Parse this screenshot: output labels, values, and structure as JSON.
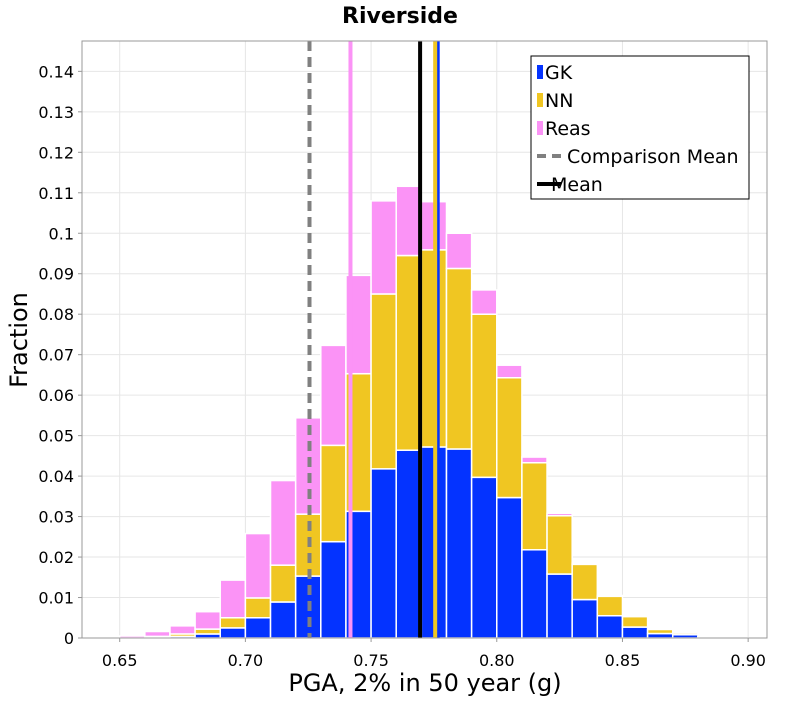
{
  "chart_data": {
    "type": "bar",
    "stacked": true,
    "title": "Riverside",
    "xlabel": "PGA, 2% in 50 year (g)",
    "ylabel": "Fraction",
    "xlim": [
      0.635,
      0.9075
    ],
    "ylim": [
      0,
      0.1475
    ],
    "grid": true,
    "legend_placement": "top-right",
    "x_ticks": [
      0.65,
      0.7,
      0.75,
      0.8,
      0.85,
      0.9
    ],
    "x_tick_labels": [
      "0.65",
      "0.70",
      "0.75",
      "0.80",
      "0.85",
      "0.90"
    ],
    "y_ticks": [
      0,
      0.01,
      0.02,
      0.03,
      0.04,
      0.05,
      0.06,
      0.07,
      0.08,
      0.09,
      0.1,
      0.11,
      0.12,
      0.13,
      0.14
    ],
    "y_tick_labels": [
      "0",
      "0.01",
      "0.02",
      "0.03",
      "0.04",
      "0.05",
      "0.06",
      "0.07",
      "0.08",
      "0.09",
      "0.1",
      "0.11",
      "0.12",
      "0.13",
      "0.14"
    ],
    "bin_width": 0.01,
    "x": [
      0.645,
      0.655,
      0.665,
      0.675,
      0.685,
      0.695,
      0.705,
      0.715,
      0.725,
      0.735,
      0.745,
      0.755,
      0.765,
      0.775,
      0.785,
      0.795,
      0.805,
      0.815,
      0.825,
      0.835,
      0.845,
      0.855,
      0.865,
      0.875,
      0.885,
      0.895
    ],
    "series": [
      {
        "name": "GK",
        "color": "#0433ff",
        "values": [
          0,
          0,
          0.0002,
          0.0004,
          0.001,
          0.0025,
          0.005,
          0.0089,
          0.0153,
          0.0238,
          0.0313,
          0.0418,
          0.0464,
          0.0472,
          0.0467,
          0.0397,
          0.0347,
          0.0218,
          0.0158,
          0.0095,
          0.0055,
          0.0027,
          0.0011,
          0.0008,
          0.0002,
          0.0001
        ]
      },
      {
        "name": "NN",
        "color": "#f0c622",
        "values": [
          0,
          0,
          0.0002,
          0.0006,
          0.0012,
          0.0025,
          0.0049,
          0.0091,
          0.0153,
          0.0238,
          0.034,
          0.0432,
          0.0481,
          0.0487,
          0.0446,
          0.0403,
          0.0296,
          0.0215,
          0.0144,
          0.0087,
          0.0048,
          0.0026,
          0.001,
          0.0004,
          0.0001,
          0
        ]
      },
      {
        "name": "Reas",
        "color": "#fb93f6",
        "values": [
          0.0002,
          0.0005,
          0.0012,
          0.002,
          0.0043,
          0.0093,
          0.0159,
          0.0209,
          0.0238,
          0.0247,
          0.0243,
          0.023,
          0.0171,
          0.0119,
          0.0087,
          0.006,
          0.0031,
          0.0014,
          0.0006,
          0.0003,
          0.0002,
          0.0001,
          0,
          0,
          0,
          0
        ]
      }
    ],
    "vlines": [
      {
        "name": "GK",
        "x": 0.7765,
        "color": "#0433ff",
        "style": "solid"
      },
      {
        "name": "NN",
        "x": 0.7755,
        "color": "#f0c622",
        "style": "solid"
      },
      {
        "name": "Reas",
        "x": 0.7418,
        "color": "#fb93f6",
        "style": "solid"
      },
      {
        "name": "Comparison Mean",
        "x": 0.7255,
        "color": "#808080",
        "style": "dashed"
      },
      {
        "name": "Mean",
        "x": 0.7695,
        "color": "#000000",
        "style": "solid"
      }
    ],
    "legend": [
      {
        "label": "GK",
        "color": "#0433ff",
        "kind": "patch"
      },
      {
        "label": "NN",
        "color": "#f0c622",
        "kind": "patch"
      },
      {
        "label": "Reas",
        "color": "#fb93f6",
        "kind": "patch"
      },
      {
        "label": "Comparison Mean",
        "color": "#808080",
        "kind": "dashed-line"
      },
      {
        "label": "Mean",
        "color": "#000000",
        "kind": "line"
      }
    ]
  }
}
